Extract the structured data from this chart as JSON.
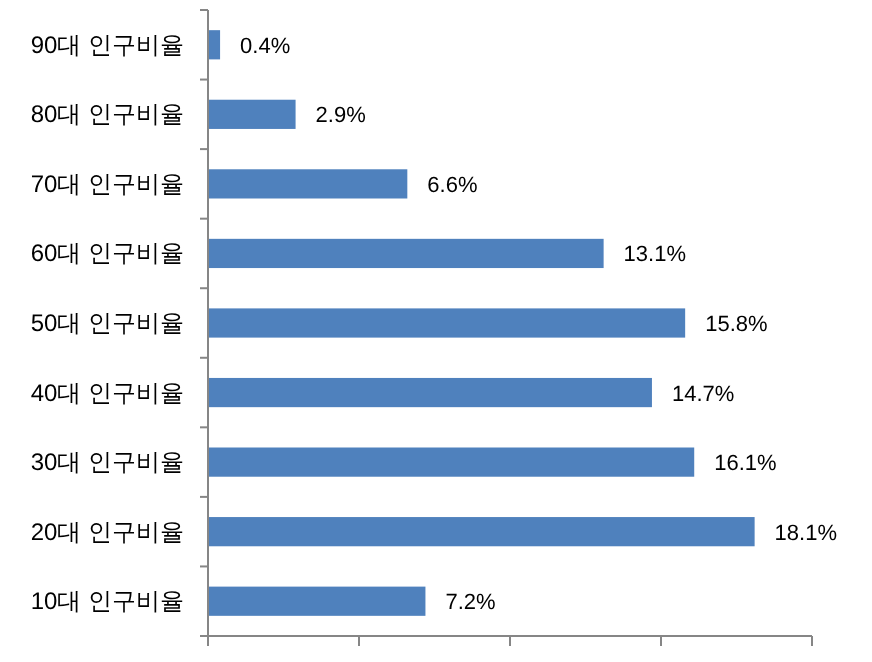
{
  "chart_data": {
    "type": "bar",
    "orientation": "horizontal",
    "categories": [
      "90대 인구비율",
      "80대 인구비율",
      "70대 인구비율",
      "60대 인구비율",
      "50대 인구비율",
      "40대 인구비율",
      "30대 인구비율",
      "20대 인구비율",
      "10대 인구비율"
    ],
    "values": [
      0.4,
      2.9,
      6.6,
      13.1,
      15.8,
      14.7,
      16.1,
      18.1,
      7.2
    ],
    "value_labels": [
      "0.4%",
      "2.9%",
      "6.6%",
      "13.1%",
      "15.8%",
      "14.7%",
      "16.1%",
      "18.1%",
      "7.2%"
    ],
    "color": "#4f81bd",
    "xlim": [
      0,
      20
    ],
    "xticks": [
      {
        "value": 0,
        "label": null
      },
      {
        "value": 5,
        "label": null
      },
      {
        "value": 10,
        "label": null
      },
      {
        "value": 15,
        "label": null
      },
      {
        "value": 20,
        "label": null
      }
    ],
    "tick_labels": "y"
  }
}
